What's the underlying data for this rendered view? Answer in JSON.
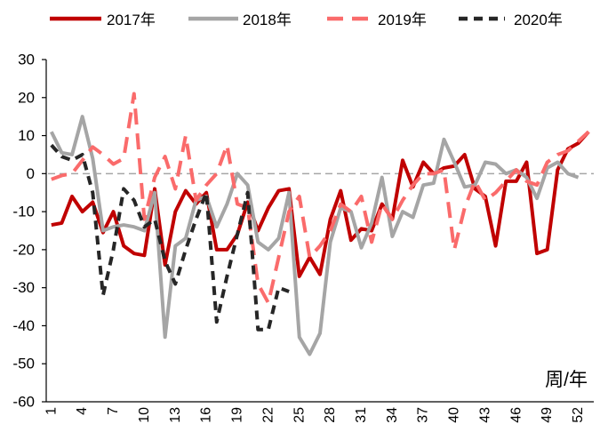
{
  "chart_data": {
    "type": "line",
    "xlabel": "周/年",
    "ylim": [
      -60,
      30
    ],
    "yticks": [
      "30",
      "20",
      "10",
      "0",
      "-10",
      "-20",
      "-30",
      "-40",
      "-50",
      "-60"
    ],
    "x": [
      1,
      2,
      3,
      4,
      5,
      6,
      7,
      8,
      9,
      10,
      11,
      12,
      13,
      14,
      15,
      16,
      17,
      18,
      19,
      20,
      21,
      22,
      23,
      24,
      25,
      26,
      27,
      28,
      29,
      30,
      31,
      32,
      33,
      34,
      35,
      36,
      37,
      38,
      39,
      40,
      41,
      42,
      43,
      44,
      45,
      46,
      47,
      48,
      49,
      50,
      51,
      52,
      53
    ],
    "xtick_labels": [
      "1",
      "4",
      "7",
      "10",
      "13",
      "16",
      "19",
      "22",
      "25",
      "28",
      "31",
      "34",
      "37",
      "40",
      "43",
      "46",
      "49",
      "52"
    ],
    "reference_line": 0,
    "legend_position": "top",
    "series": [
      {
        "name": "2017年",
        "color": "#C00000",
        "dash": "solid",
        "values": [
          -13.5,
          -13,
          -6,
          -10,
          -7.5,
          -15.5,
          -10,
          -19,
          -21,
          -21.5,
          -4,
          -24,
          -10,
          -4.5,
          -8,
          -5,
          -20,
          -20,
          -16,
          -7.5,
          -15,
          -9,
          -4.5,
          -4,
          -27,
          -22,
          -26.5,
          -12,
          -4.5,
          -17.5,
          -14.5,
          -15,
          -8,
          -12,
          3.5,
          -3.5,
          3,
          0,
          1.5,
          2,
          5,
          -4,
          -6,
          -19,
          -2,
          -2,
          3,
          -21,
          -20,
          1,
          6.5,
          8,
          11
        ]
      },
      {
        "name": "2018年",
        "color": "#A5A5A5",
        "dash": "solid",
        "values": [
          11,
          5.5,
          5,
          15,
          4,
          -15,
          -14,
          -13.5,
          -14,
          -15,
          -5,
          -43,
          -19,
          -17,
          -7,
          -6,
          -14,
          -8,
          0,
          -3,
          -18,
          -20,
          -17,
          -5,
          -43,
          -47.5,
          -42,
          -18,
          -9,
          -10,
          -19.5,
          -13,
          -1,
          -16.5,
          -10,
          -11.5,
          -3,
          -2.5,
          9,
          3,
          -3.5,
          -3,
          3,
          2.5,
          0,
          1,
          -1,
          -6.5,
          1.5,
          3,
          0,
          -1,
          null
        ]
      },
      {
        "name": "2019年",
        "color": "#FA6B6B",
        "dash": "long-dash",
        "values": [
          -1.5,
          -0.5,
          0,
          3.5,
          7,
          5,
          2.5,
          4,
          21,
          -12,
          -1,
          4.5,
          -4,
          10,
          -7,
          -3,
          0,
          7.5,
          -8,
          -9,
          -29,
          -34,
          -22,
          -10,
          -6,
          -22,
          -19,
          -15,
          -8,
          -10,
          -6,
          -18,
          -8,
          -12,
          -7,
          -3,
          0,
          0,
          1,
          -20,
          -9,
          -2,
          -7,
          -5,
          -2,
          1,
          -2,
          -3,
          3,
          5,
          6,
          8.5,
          11
        ]
      },
      {
        "name": "2020年",
        "color": "#262626",
        "dash": "short-dash",
        "values": [
          7.5,
          4.5,
          3.5,
          5,
          -5,
          -32,
          -20,
          -4,
          -7,
          -14,
          -12,
          -23,
          -29,
          -20,
          -12,
          -5,
          -39,
          -27,
          -16,
          -5,
          -41,
          -41,
          -30,
          -31,
          null,
          null,
          null,
          null,
          null,
          null,
          null,
          null,
          null,
          null,
          null,
          null,
          null,
          null,
          null,
          null,
          null,
          null,
          null,
          null,
          null,
          null,
          null,
          null,
          null,
          null,
          null,
          null,
          null
        ]
      }
    ]
  }
}
